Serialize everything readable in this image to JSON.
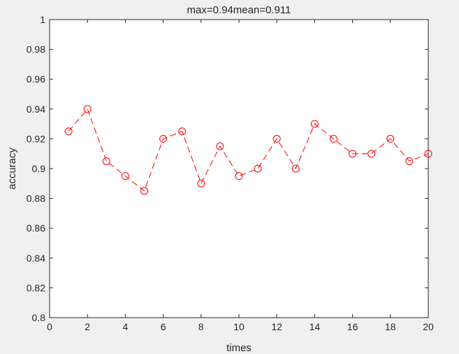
{
  "chart_data": {
    "type": "line",
    "title": "max=0.94mean=0.911",
    "xlabel": "times",
    "ylabel": "accuracy",
    "xlim": [
      0,
      20
    ],
    "ylim": [
      0.8,
      1
    ],
    "xticks": [
      0,
      2,
      4,
      6,
      8,
      10,
      12,
      14,
      16,
      18,
      20
    ],
    "yticks": [
      0.8,
      0.82,
      0.84,
      0.86,
      0.88,
      0.9,
      0.92,
      0.94,
      0.96,
      0.98,
      1
    ],
    "xtick_labels": [
      "0",
      "2",
      "4",
      "6",
      "8",
      "10",
      "12",
      "14",
      "16",
      "18",
      "20"
    ],
    "ytick_labels": [
      "0.8",
      "0.82",
      "0.84",
      "0.86",
      "0.88",
      "0.9",
      "0.92",
      "0.94",
      "0.96",
      "0.98",
      "1"
    ],
    "grid": false,
    "series": [
      {
        "color": "#ff0000",
        "line_style": "dashed",
        "marker": "circle",
        "x": [
          1,
          2,
          3,
          4,
          5,
          6,
          7,
          8,
          9,
          10,
          11,
          12,
          13,
          14,
          15,
          16,
          17,
          18,
          19,
          20
        ],
        "y": [
          0.925,
          0.94,
          0.905,
          0.895,
          0.885,
          0.92,
          0.925,
          0.89,
          0.915,
          0.895,
          0.9,
          0.92,
          0.9,
          0.93,
          0.92,
          0.91,
          0.91,
          0.92,
          0.905,
          0.91
        ]
      }
    ]
  }
}
